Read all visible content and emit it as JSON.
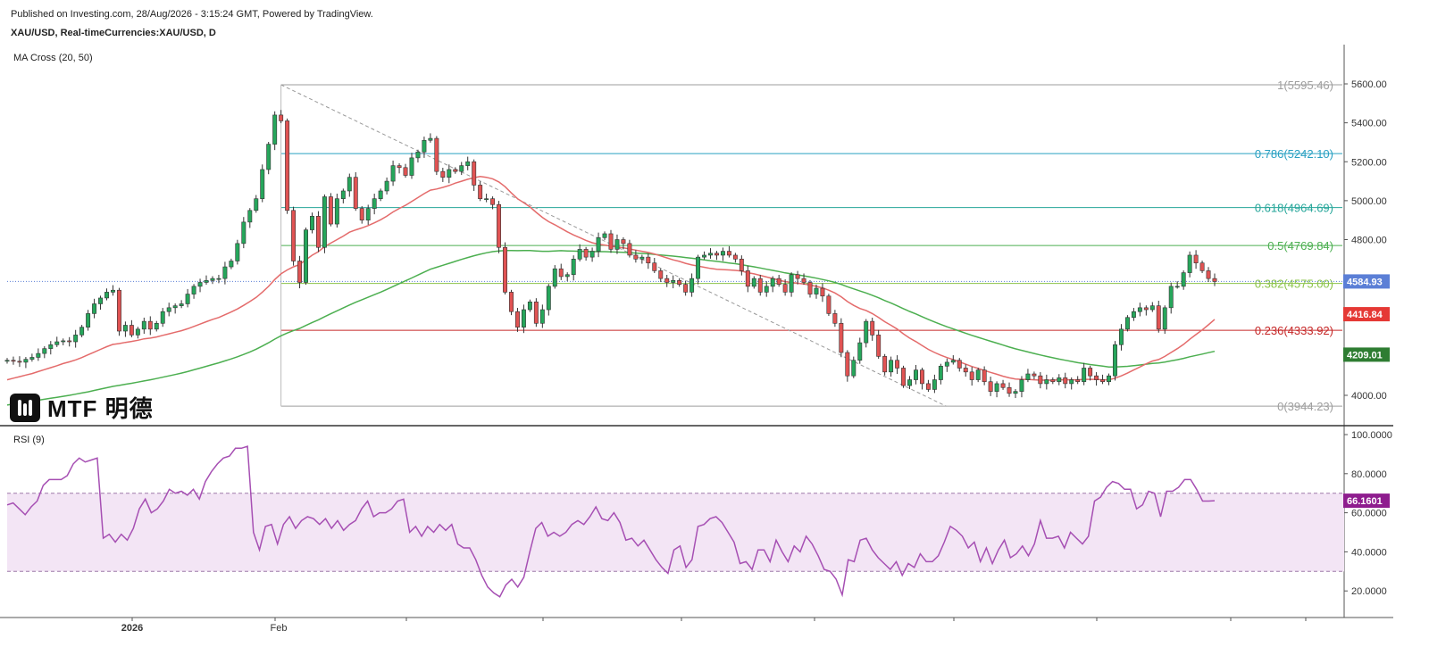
{
  "header": {
    "published": "Published on Investing.com, 28/Aug/2026 - 3:15:24 GMT, Powered by TradingView.",
    "symbol": "XAU/USD, Real-timeCurrencies:XAU/USD, D"
  },
  "indicators": {
    "ma_cross": "MA Cross (20, 50)",
    "rsi": "RSI (9)"
  },
  "logo": {
    "text": "MTF 明德",
    "icon": "mtf-logo-icon"
  },
  "colors": {
    "up": "#26a65b",
    "down": "#e05353",
    "ma20": "#e46b6b",
    "ma50": "#4caf50",
    "rsi": "#a64fb3",
    "rsi_band": "#f3e5f5",
    "fib_0": "#9e9e9e",
    "fib_0236": "#c62828",
    "fib_0382": "#8bc34a",
    "fib_05": "#4caf50",
    "fib_0618": "#26a69a",
    "fib_0786": "#29a0c2",
    "fib_1": "#9e9e9e"
  },
  "chart_data": [
    {
      "type": "candlestick",
      "title": "XAU/USD, D",
      "ylim": [
        3850,
        5750
      ],
      "y_ticks": [
        "5600.00",
        "5400.00",
        "5200.00",
        "5000.00",
        "4800.00",
        "4600.00",
        "4400.00",
        "4200.00",
        "4000.00"
      ],
      "x_labels": [
        "2026",
        "Feb"
      ],
      "fib_levels": [
        {
          "label": "1(5595.46)",
          "value": 5595.46
        },
        {
          "label": "0.786(5242.10)",
          "value": 5242.1
        },
        {
          "label": "0.618(4964.69)",
          "value": 4964.69
        },
        {
          "label": "0.5(4769.84)",
          "value": 4769.84
        },
        {
          "label": "0.382(4575.00)",
          "value": 4575.0
        },
        {
          "label": "0.236(4333.92)",
          "value": 4333.92
        },
        {
          "label": "0(3944.23)",
          "value": 3944.23
        }
      ],
      "price_tags": [
        {
          "label": "4584.93",
          "value": 4584.93,
          "color": "#5b7fd6"
        },
        {
          "label": "4416.84",
          "value": 4416.84,
          "color": "#e53935"
        },
        {
          "label": "4209.01",
          "value": 4209.01,
          "color": "#2e7d32"
        }
      ],
      "closes": [
        4180,
        4175,
        4170,
        4185,
        4195,
        4215,
        4240,
        4260,
        4275,
        4280,
        4275,
        4310,
        4350,
        4420,
        4470,
        4500,
        4530,
        4540,
        4330,
        4360,
        4310,
        4340,
        4380,
        4340,
        4370,
        4430,
        4450,
        4460,
        4470,
        4520,
        4560,
        4580,
        4590,
        4600,
        4600,
        4660,
        4690,
        4780,
        4890,
        4950,
        5010,
        5160,
        5290,
        5440,
        5410,
        4950,
        4690,
        4580,
        4850,
        4920,
        4760,
        5020,
        4880,
        5010,
        5050,
        5120,
        4960,
        4900,
        4960,
        5010,
        5050,
        5100,
        5180,
        5170,
        5130,
        5220,
        5250,
        5310,
        5320,
        5150,
        5120,
        5160,
        5150,
        5180,
        5200,
        5080,
        5010,
        5010,
        4980,
        4760,
        4530,
        4430,
        4350,
        4440,
        4480,
        4370,
        4440,
        4560,
        4650,
        4610,
        4620,
        4700,
        4750,
        4710,
        4740,
        4810,
        4830,
        4750,
        4800,
        4780,
        4720,
        4700,
        4710,
        4680,
        4640,
        4600,
        4580,
        4590,
        4570,
        4530,
        4600,
        4710,
        4720,
        4730,
        4720,
        4740,
        4720,
        4700,
        4640,
        4560,
        4600,
        4530,
        4560,
        4600,
        4570,
        4530,
        4620,
        4600,
        4580,
        4520,
        4550,
        4510,
        4420,
        4370,
        4220,
        4100,
        4180,
        4270,
        4380,
        4310,
        4200,
        4120,
        4180,
        4140,
        4050,
        4080,
        4130,
        4060,
        4030,
        4080,
        4150,
        4170,
        4180,
        4140,
        4120,
        4080,
        4130,
        4070,
        4020,
        4060,
        4040,
        4010,
        4020,
        4080,
        4110,
        4100,
        4060,
        4080,
        4070,
        4090,
        4060,
        4080,
        4070,
        4140,
        4100,
        4080,
        4070,
        4100,
        4260,
        4340,
        4400,
        4430,
        4450,
        4440,
        4460,
        4340,
        4450,
        4560,
        4560,
        4630,
        4720,
        4680,
        4640,
        4600,
        4584.93
      ],
      "ma20": [
        4080,
        4088,
        4096,
        4104,
        4112,
        4122,
        4132,
        4142,
        4152,
        4163,
        4172,
        4182,
        4194,
        4208,
        4222,
        4236,
        4250,
        4262,
        4266,
        4272,
        4277,
        4283,
        4290,
        4294,
        4300,
        4308,
        4316,
        4324,
        4332,
        4342,
        4354,
        4366,
        4378,
        4390,
        4400,
        4414,
        4428,
        4444,
        4462,
        4482,
        4503,
        4530,
        4560,
        4595,
        4624,
        4644,
        4660,
        4672,
        4696,
        4720,
        4738,
        4764,
        4782,
        4800,
        4818,
        4838,
        4850,
        4860,
        4872,
        4886,
        4902,
        4920,
        4942,
        4960,
        4976,
        4996,
        5016,
        5036,
        5054,
        5060,
        5068,
        5078,
        5090,
        5100,
        5110,
        5118,
        5124,
        5120,
        5112,
        5096,
        5072,
        5040,
        5010,
        4990,
        4968,
        4940,
        4914,
        4892,
        4876,
        4858,
        4840,
        4824,
        4810,
        4796,
        4784,
        4776,
        4772,
        4766,
        4762,
        4758,
        4752,
        4746,
        4740,
        4734,
        4726,
        4716,
        4706,
        4696,
        4688,
        4678,
        4670,
        4664,
        4658,
        4652,
        4648,
        4646,
        4644,
        4642,
        4638,
        4630,
        4624,
        4616,
        4608,
        4600,
        4592,
        4584,
        4580,
        4576,
        4572,
        4566,
        4560,
        4552,
        4540,
        4526,
        4506,
        4482,
        4462,
        4446,
        4436,
        4420,
        4400,
        4378,
        4360,
        4340,
        4316,
        4294,
        4276,
        4256,
        4236,
        4220,
        4206,
        4194,
        4184,
        4172,
        4160,
        4148,
        4138,
        4128,
        4118,
        4108,
        4098,
        4090,
        4084,
        4082,
        4082,
        4080,
        4078,
        4078,
        4078,
        4080,
        4080,
        4080,
        4080,
        4082,
        4082,
        4082,
        4080,
        4080,
        4088,
        4100,
        4114,
        4130,
        4146,
        4162,
        4176,
        4184,
        4200,
        4220,
        4240,
        4262,
        4288,
        4312,
        4336,
        4362,
        4390
      ],
      "ma50": [
        3950,
        3955,
        3960,
        3965,
        3970,
        3975,
        3980,
        3985,
        3990,
        3995,
        4000,
        4006,
        4012,
        4018,
        4025,
        4032,
        4039,
        4046,
        4051,
        4057,
        4062,
        4068,
        4074,
        4080,
        4086,
        4093,
        4100,
        4107,
        4114,
        4122,
        4131,
        4140,
        4149,
        4158,
        4167,
        4177,
        4187,
        4198,
        4210,
        4223,
        4237,
        4253,
        4270,
        4289,
        4306,
        4320,
        4333,
        4344,
        4359,
        4374,
        4388,
        4404,
        4419,
        4434,
        4449,
        4464,
        4478,
        4491,
        4504,
        4517,
        4530,
        4544,
        4559,
        4574,
        4588,
        4603,
        4618,
        4633,
        4648,
        4658,
        4668,
        4678,
        4688,
        4698,
        4708,
        4717,
        4725,
        4732,
        4738,
        4742,
        4744,
        4744,
        4743,
        4744,
        4744,
        4742,
        4740,
        4740,
        4742,
        4743,
        4742,
        4741,
        4740,
        4739,
        4738,
        4738,
        4738,
        4737,
        4736,
        4735,
        4733,
        4731,
        4729,
        4727,
        4724,
        4721,
        4718,
        4715,
        4712,
        4708,
        4704,
        4700,
        4696,
        4692,
        4688,
        4684,
        4680,
        4676,
        4671,
        4665,
        4660,
        4654,
        4648,
        4642,
        4636,
        4629,
        4624,
        4619,
        4614,
        4608,
        4602,
        4595,
        4588,
        4580,
        4570,
        4558,
        4547,
        4536,
        4526,
        4514,
        4501,
        4487,
        4474,
        4460,
        4445,
        4431,
        4418,
        4404,
        4390,
        4377,
        4364,
        4352,
        4341,
        4330,
        4319,
        4308,
        4298,
        4288,
        4278,
        4268,
        4258,
        4248,
        4239,
        4231,
        4223,
        4215,
        4207,
        4200,
        4193,
        4186,
        4180,
        4174,
        4168,
        4163,
        4158,
        4154,
        4150,
        4146,
        4146,
        4147,
        4149,
        4152,
        4156,
        4160,
        4164,
        4166,
        4171,
        4177,
        4183,
        4190,
        4198,
        4205,
        4212,
        4219,
        4226
      ]
    },
    {
      "type": "line",
      "title": "RSI (9)",
      "ylim": [
        10,
        102
      ],
      "y_ticks": [
        "100.0000",
        "80.0000",
        "60.0000",
        "40.0000",
        "20.0000"
      ],
      "bands": [
        30,
        70
      ],
      "last_value_label": "66.1601",
      "values": [
        64,
        65,
        62,
        59,
        63,
        66,
        74,
        77,
        77,
        77,
        79,
        85,
        88,
        86,
        87,
        88,
        47,
        49,
        45,
        49,
        46,
        52,
        62,
        67,
        60,
        62,
        66,
        72,
        70,
        71,
        69,
        72,
        67,
        76,
        81,
        85,
        88,
        89,
        93,
        93,
        94,
        50,
        41,
        53,
        54,
        44,
        54,
        58,
        52,
        56,
        58,
        57,
        54,
        57,
        52,
        56,
        51,
        54,
        56,
        62,
        66,
        58,
        60,
        60,
        62,
        66,
        67,
        50,
        53,
        48,
        53,
        50,
        54,
        51,
        54,
        44,
        42,
        42,
        36,
        28,
        22,
        19,
        17,
        23,
        26,
        22,
        27,
        40,
        52,
        55,
        48,
        50,
        48,
        50,
        54,
        56,
        54,
        58,
        63,
        57,
        56,
        60,
        55,
        46,
        47,
        43,
        46,
        41,
        36,
        32,
        29,
        41,
        43,
        32,
        36,
        53,
        54,
        57,
        58,
        55,
        50,
        45,
        34,
        35,
        31,
        41,
        41,
        35,
        46,
        40,
        35,
        43,
        40,
        48,
        44,
        38,
        31,
        30,
        26,
        18,
        36,
        35,
        46,
        47,
        41,
        37,
        34,
        31,
        35,
        28,
        34,
        32,
        39,
        35,
        35,
        38,
        45,
        53,
        51,
        48,
        42,
        45,
        35,
        42,
        34,
        41,
        46,
        37,
        39,
        43,
        38,
        44,
        56,
        47,
        47,
        48,
        42,
        50,
        47,
        44,
        48,
        66,
        68,
        73,
        76,
        75,
        72,
        72,
        62,
        64,
        71,
        70,
        58,
        71,
        71,
        73,
        77,
        77,
        72,
        66,
        66,
        66.16
      ],
      "reference_labels": [
        "70",
        "30"
      ]
    }
  ]
}
